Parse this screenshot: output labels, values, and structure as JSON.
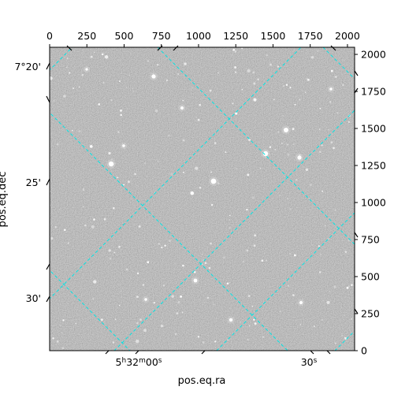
{
  "figure": {
    "xlabel": "pos.eq.ra",
    "ylabel": "pos.eq.dec",
    "grid_color": "#00e5e5",
    "image_style": "grayscale star field (astronomical image)",
    "pixel_axes": {
      "x_ticks": [
        "0",
        "250",
        "500",
        "750",
        "1000",
        "1250",
        "1500",
        "1750",
        "2000"
      ],
      "y_ticks": [
        "0",
        "250",
        "500",
        "750",
        "1000",
        "1250",
        "1500",
        "1750",
        "2000"
      ]
    },
    "world_axes": {
      "ra_ticks": [
        {
          "label_main": "5",
          "label_sup_h": "h",
          "label_mid": "32",
          "label_sup_m": "m",
          "label_end": "00",
          "label_sup_s": "s"
        },
        {
          "label_main": "30",
          "label_sup_s": "s"
        }
      ],
      "dec_ticks": [
        "7°20'",
        "25'",
        "30'"
      ]
    }
  }
}
